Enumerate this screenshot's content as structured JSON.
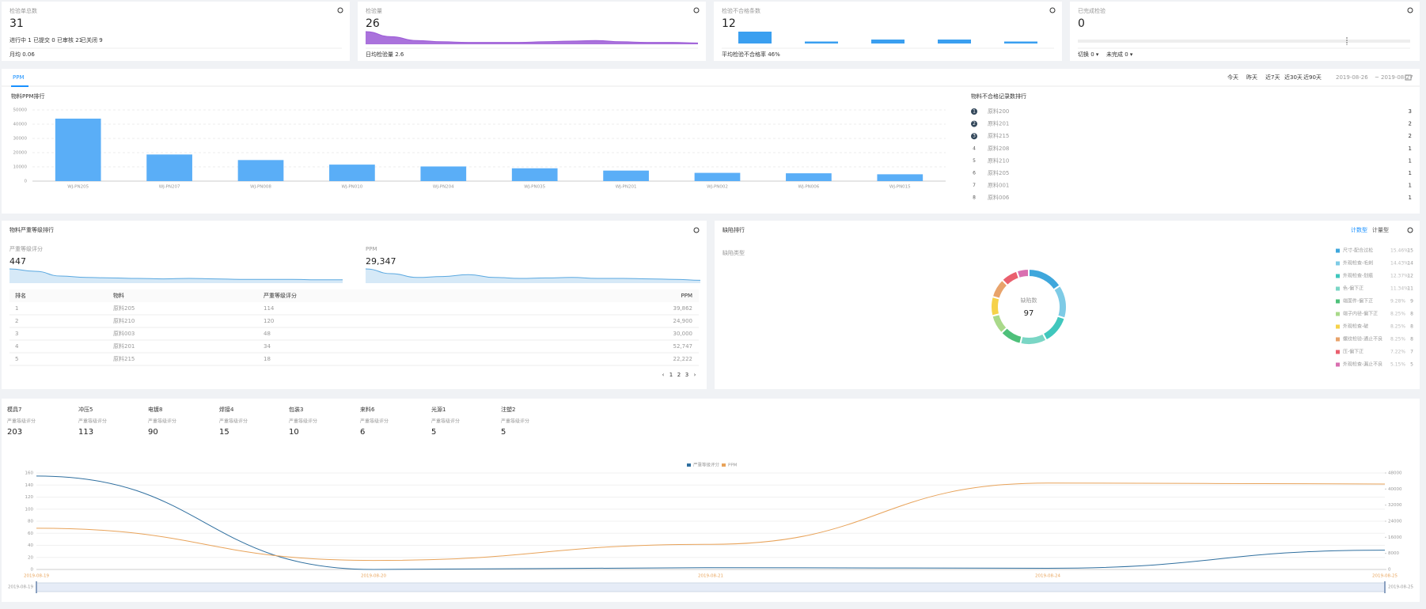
{
  "summary_cards": [
    {
      "title": "检验单总数",
      "value": 31,
      "stats": [
        "进行中 1",
        "已提交 0",
        "已审核 21",
        "已关闭 9"
      ],
      "footer": "月均 0.06"
    },
    {
      "title": "检验量",
      "value": 26,
      "footer": "日均检验量 2.6"
    },
    {
      "title": "检验不合格条数",
      "value": 12,
      "footer": "平均检验不合格率 46%"
    },
    {
      "title": "已完成检验",
      "value": 0,
      "footer": [
        "切换 0 ▾",
        "未完成 0 ▾"
      ]
    }
  ],
  "ppm_panel": {
    "tab": "PPM",
    "filters": [
      "今天",
      "昨天",
      "近7天",
      "近30天",
      "近90天"
    ],
    "date_from": "2019-08-26",
    "date_sep": "~",
    "date_to": "2019-08-27"
  },
  "ranking": {
    "title": "物料不合格记录数排行",
    "items": [
      {
        "rank": 1,
        "name": "原料200",
        "count": 3
      },
      {
        "rank": 2,
        "name": "原料201",
        "count": 2
      },
      {
        "rank": 3,
        "name": "原料215",
        "count": 2
      },
      {
        "rank": 4,
        "name": "原料208",
        "count": 1
      },
      {
        "rank": 5,
        "name": "原料210",
        "count": 1
      },
      {
        "rank": 6,
        "name": "原料205",
        "count": 1
      },
      {
        "rank": 7,
        "name": "原料001",
        "count": 1
      },
      {
        "rank": 8,
        "name": "原料006",
        "count": 1
      }
    ]
  },
  "severity": {
    "title": "物料严重等级排行",
    "kpis": [
      {
        "label": "严重等级评分",
        "value": "447"
      },
      {
        "label": "PPM",
        "value": "29,347"
      }
    ],
    "table": {
      "headers": [
        "排名",
        "物料",
        "严重等级评分",
        "PPM"
      ],
      "rows": [
        [
          "1",
          "原料205",
          "114",
          "39,862"
        ],
        [
          "2",
          "原料210",
          "120",
          "24,900"
        ],
        [
          "3",
          "原料003",
          "48",
          "30,000"
        ],
        [
          "4",
          "原料201",
          "34",
          "52,747"
        ],
        [
          "5",
          "原料215",
          "18",
          "22,222"
        ]
      ]
    },
    "pages": [
      "‹",
      "1",
      "2",
      "3",
      "›"
    ]
  },
  "defect": {
    "title": "缺陷排行",
    "tabs": [
      "计数型",
      "计量型"
    ],
    "subtitle": "缺陷类型"
  },
  "process_stats": [
    {
      "name": "模具7",
      "label": "严重等级评分",
      "value": 203
    },
    {
      "name": "冲压5",
      "label": "严重等级评分",
      "value": 113
    },
    {
      "name": "电镀8",
      "label": "严重等级评分",
      "value": 90
    },
    {
      "name": "焊接4",
      "label": "严重等级评分",
      "value": 15
    },
    {
      "name": "包装3",
      "label": "严重等级评分",
      "value": 10
    },
    {
      "name": "来料6",
      "label": "严重等级评分",
      "value": 6
    },
    {
      "name": "光源1",
      "label": "严重等级评分",
      "value": 5
    },
    {
      "name": "注塑2",
      "label": "严重等级评分",
      "value": 5
    }
  ],
  "chart_data": [
    {
      "type": "area",
      "color": "#9b59d6",
      "values": [
        20,
        12,
        6,
        4,
        3,
        3,
        3,
        4,
        5,
        6,
        4,
        3,
        3,
        2
      ]
    },
    {
      "type": "bar",
      "color": "#3a9ff0",
      "values": [
        6,
        1,
        2,
        2,
        1
      ]
    },
    {
      "type": "bar",
      "title": "物料PPM排行",
      "color": "#5aaef7",
      "categories": [
        "WJ-PN205",
        "WJ-PN207",
        "WJ-PN008",
        "WJ-PN010",
        "WJ-PN204",
        "WJ-PN035",
        "WJ-PN201",
        "WJ-PN002",
        "WJ-PN006",
        "WJ-PN015"
      ],
      "values": [
        43900,
        18700,
        14800,
        11600,
        10300,
        9000,
        7400,
        5800,
        5500,
        4800
      ],
      "ylim": [
        0,
        50000
      ],
      "yticks": [
        0,
        10000,
        20000,
        30000,
        40000,
        50000
      ],
      "grid": true
    },
    {
      "type": "area",
      "color": "#5aa8e0",
      "values": [
        30,
        25,
        15,
        12,
        11,
        10,
        9,
        10,
        9,
        8,
        8,
        8,
        7,
        7
      ]
    },
    {
      "type": "area",
      "color": "#5aa8e0",
      "values": [
        30,
        20,
        12,
        14,
        18,
        12,
        10,
        11,
        12,
        10,
        10,
        9,
        8,
        6
      ]
    },
    {
      "type": "pie",
      "center_label": "缺陷数",
      "total": 97,
      "categories": [
        "尺寸-配合过松",
        "外观检查-毛刺",
        "外观检查-划痕",
        "色-偏下正",
        "端面件-偏下正",
        "端子内径-偏下正",
        "外观检查-破",
        "螺纹检验-通止不良",
        "压-偏下正",
        "外观检查-漏止不良"
      ],
      "values": [
        15,
        14,
        12,
        11,
        9,
        8,
        8,
        8,
        7,
        5
      ],
      "percents": [
        "15.46%",
        "14.43%",
        "12.37%",
        "11.34%",
        "9.28%",
        "8.25%",
        "8.25%",
        "8.25%",
        "7.22%",
        "5.15%"
      ],
      "colors": [
        "#3fa7dc",
        "#7ecbe6",
        "#40c7bd",
        "#7ad6c5",
        "#4ec07a",
        "#a9d98a",
        "#f6d24a",
        "#e8a36b",
        "#ea5f6e",
        "#d96fb0"
      ]
    },
    {
      "type": "line",
      "x": [
        "2019-08-19",
        "2019-08-20",
        "2019-08-21",
        "2019-08-24",
        "2019-08-25"
      ],
      "series": [
        {
          "name": "严重等级评分",
          "color": "#2f6f9f",
          "values": [
            155,
            0,
            3,
            2,
            32
          ]
        },
        {
          "name": "PPM",
          "color": "#e8a35a",
          "axis": "y2",
          "values": [
            20500,
            4500,
            12500,
            43000,
            42500
          ]
        }
      ],
      "ylim": [
        0,
        160
      ],
      "yticks": [
        0,
        20,
        40,
        60,
        80,
        100,
        120,
        140,
        160
      ],
      "y2lim": [
        0,
        48000
      ],
      "y2ticks": [
        0,
        8000,
        16000,
        24000,
        32000,
        40000,
        48000
      ],
      "grid": true
    }
  ]
}
